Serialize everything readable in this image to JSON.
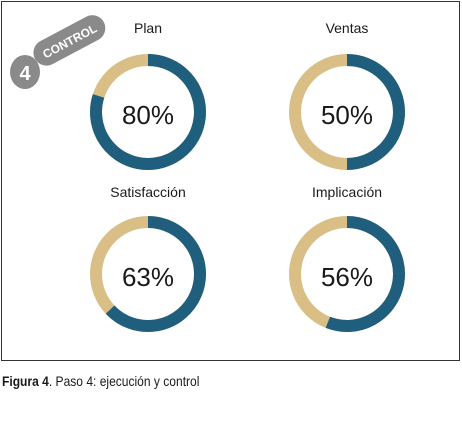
{
  "badge": {
    "number": "4",
    "label": "CONTROL"
  },
  "colors": {
    "fill": "#1f5f7d",
    "track": "#d9bf86",
    "badge": "#8a8a8a"
  },
  "chart_data": [
    {
      "type": "pie",
      "title": "Plan",
      "value": 80,
      "label": "80%"
    },
    {
      "type": "pie",
      "title": "Ventas",
      "value": 50,
      "label": "50%"
    },
    {
      "type": "pie",
      "title": "Satisfacción",
      "value": 63,
      "label": "63%"
    },
    {
      "type": "pie",
      "title": "Implicación",
      "value": 56,
      "label": "56%"
    }
  ],
  "caption": {
    "prefix": "Figura 4",
    "text": ". Paso 4: ejecución y control"
  }
}
